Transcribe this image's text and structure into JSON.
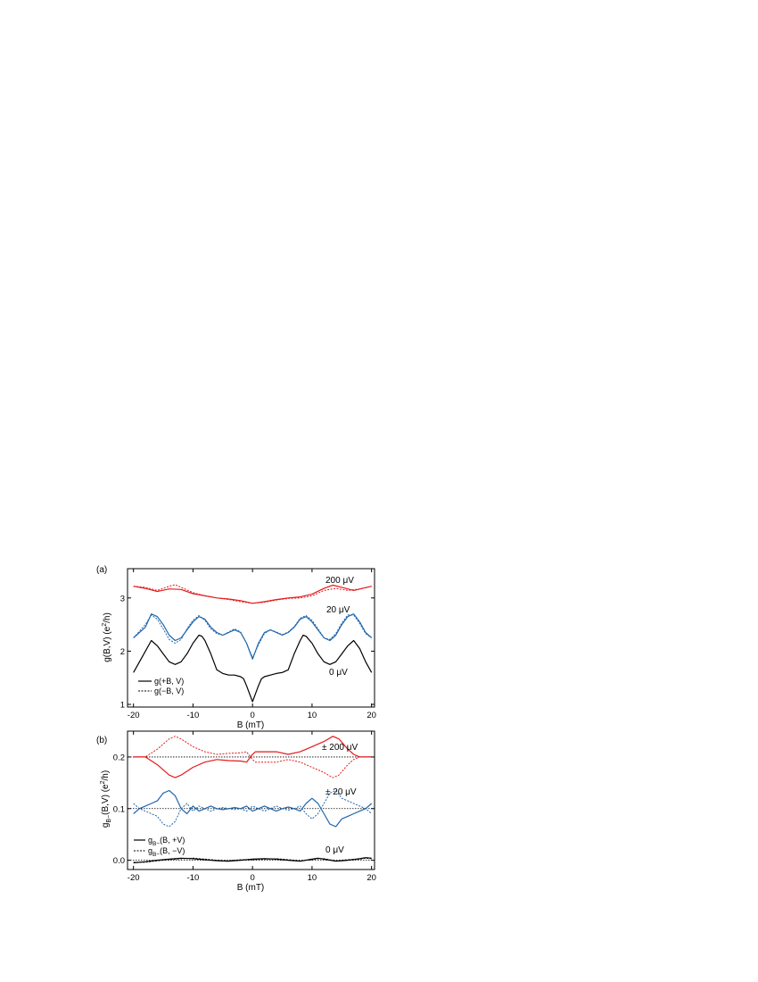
{
  "chart_data": [
    {
      "type": "line",
      "panel_label": "(a)",
      "xlabel": "B (mT)",
      "ylabel": "g(B,V)  (e",
      "ylabel_sup": "2",
      "ylabel_tail": "/h)",
      "xlim": [
        -21,
        20.5
      ],
      "ylim": [
        0.95,
        3.55
      ],
      "xticks": [
        -20,
        -10,
        0,
        10,
        20
      ],
      "xtick_labels": [
        "-20",
        "-10",
        "0",
        "10",
        "20"
      ],
      "yticks": [
        1,
        2,
        3
      ],
      "ytick_labels": [
        "1",
        "2",
        "3"
      ],
      "legend_position": "bottom-left",
      "legend": [
        {
          "label": "g(+B, V)",
          "style": "solid"
        },
        {
          "label": "g(−B, V)",
          "style": "dotted"
        }
      ],
      "annotations": [
        "200 μV",
        "20 μV",
        "0 μV"
      ],
      "series": [
        {
          "color": "#e41a1c",
          "style": "solid",
          "x": [
            -20,
            -18,
            -16,
            -14,
            -12,
            -10,
            -8,
            -6,
            -4,
            -2,
            0,
            2,
            4,
            6,
            8,
            10,
            12,
            13.5,
            15,
            17,
            20
          ],
          "y": [
            3.22,
            3.18,
            3.12,
            3.17,
            3.16,
            3.08,
            3.04,
            3.0,
            2.98,
            2.95,
            2.9,
            2.93,
            2.97,
            3.0,
            3.02,
            3.07,
            3.18,
            3.24,
            3.2,
            3.14,
            3.22
          ]
        },
        {
          "color": "#e41a1c",
          "style": "dotted",
          "x": [
            -20,
            -18,
            -16,
            -14,
            -13,
            -12,
            -10,
            -8,
            -6,
            -4,
            -2,
            0,
            2,
            4,
            6,
            8,
            10,
            12,
            14,
            16,
            18,
            20
          ],
          "y": [
            3.22,
            3.2,
            3.14,
            3.22,
            3.25,
            3.2,
            3.1,
            3.04,
            3.0,
            2.97,
            2.93,
            2.9,
            2.92,
            2.96,
            2.99,
            3.0,
            3.04,
            3.14,
            3.18,
            3.14,
            3.17,
            3.22
          ]
        },
        {
          "color": "#2166ac",
          "style": "solid",
          "x": [
            -20,
            -18,
            -17,
            -16,
            -15,
            -14,
            -13,
            -12,
            -11,
            -10,
            -9,
            -8,
            -7,
            -6,
            -5,
            -4,
            -3,
            -2,
            -1,
            0,
            1,
            2,
            3,
            4,
            5,
            6,
            7,
            8,
            9,
            10,
            11,
            12,
            13,
            14,
            15,
            16,
            17,
            18,
            19,
            20
          ],
          "y": [
            2.25,
            2.45,
            2.7,
            2.65,
            2.5,
            2.3,
            2.2,
            2.25,
            2.4,
            2.55,
            2.65,
            2.6,
            2.45,
            2.35,
            2.3,
            2.35,
            2.4,
            2.35,
            2.15,
            1.85,
            2.15,
            2.35,
            2.4,
            2.35,
            2.3,
            2.35,
            2.45,
            2.6,
            2.65,
            2.55,
            2.4,
            2.25,
            2.2,
            2.3,
            2.5,
            2.65,
            2.7,
            2.55,
            2.35,
            2.25
          ]
        },
        {
          "color": "#2166ac",
          "style": "dotted",
          "x": [
            -20,
            -18,
            -17,
            -16,
            -15,
            -14,
            -13,
            -12,
            -11,
            -10,
            -9,
            -8,
            -7,
            -6,
            -5,
            -4,
            -3,
            -2,
            -1,
            0,
            1,
            2,
            3,
            4,
            5,
            6,
            7,
            8,
            9,
            10,
            11,
            12,
            13,
            14,
            15,
            16,
            17,
            18,
            19,
            20
          ],
          "y": [
            2.25,
            2.5,
            2.68,
            2.6,
            2.42,
            2.22,
            2.15,
            2.22,
            2.42,
            2.58,
            2.67,
            2.58,
            2.42,
            2.33,
            2.3,
            2.36,
            2.42,
            2.36,
            2.15,
            1.88,
            2.12,
            2.33,
            2.4,
            2.36,
            2.31,
            2.36,
            2.46,
            2.62,
            2.67,
            2.58,
            2.42,
            2.25,
            2.22,
            2.33,
            2.53,
            2.68,
            2.68,
            2.52,
            2.33,
            2.25
          ]
        },
        {
          "color": "#000000",
          "style": "solid",
          "x": [
            -20,
            -18.5,
            -17,
            -16,
            -15,
            -14,
            -13,
            -12,
            -11,
            -10,
            -9,
            -8.5,
            -8,
            -7,
            -6,
            -5,
            -4,
            -3,
            -2,
            -1.5,
            -1,
            -0.5,
            0,
            0.5,
            1,
            1.5,
            2,
            3,
            4,
            5,
            6,
            7,
            8,
            8.5,
            9,
            10,
            11,
            12,
            13,
            14,
            15,
            16,
            17,
            18,
            19,
            20
          ],
          "y": [
            1.6,
            1.9,
            2.2,
            2.1,
            1.95,
            1.8,
            1.75,
            1.8,
            1.95,
            2.15,
            2.3,
            2.28,
            2.2,
            1.95,
            1.65,
            1.58,
            1.55,
            1.55,
            1.52,
            1.48,
            1.35,
            1.2,
            1.05,
            1.2,
            1.35,
            1.48,
            1.52,
            1.55,
            1.58,
            1.6,
            1.65,
            1.95,
            2.2,
            2.3,
            2.28,
            2.15,
            1.95,
            1.8,
            1.75,
            1.8,
            1.95,
            2.1,
            2.2,
            2.05,
            1.8,
            1.6
          ]
        }
      ]
    },
    {
      "type": "line",
      "panel_label": "(b)",
      "xlabel": "B (mT)",
      "ylabel": "g",
      "ylabel_sub": "B−",
      "ylabel_tail": "(B,V) (e",
      "ylabel_sup": "2",
      "ylabel_end": "/h)",
      "xlim": [
        -21,
        20.5
      ],
      "ylim": [
        -0.018,
        0.25
      ],
      "xticks": [
        -20,
        -10,
        0,
        10,
        20
      ],
      "xtick_labels": [
        "-20",
        "-10",
        "0",
        "10",
        "20"
      ],
      "yticks": [
        0.0,
        0.1,
        0.2
      ],
      "ytick_labels": [
        "0.0",
        "0.1",
        "0.2"
      ],
      "reference_lines": [
        0.0,
        0.1,
        0.2
      ],
      "legend_position": "bottom-left",
      "legend": [
        {
          "label_main": "g",
          "label_sub": "B−",
          "label_tail": "(B, +V)",
          "style": "solid"
        },
        {
          "label_main": "g",
          "label_sub": "B−",
          "label_tail": "(B, −V)",
          "style": "dotted"
        }
      ],
      "annotations": [
        "± 200 μV",
        "± 20 μV",
        "0 μV"
      ],
      "series": [
        {
          "color": "#e41a1c",
          "style": "solid",
          "x": [
            -20,
            -18,
            -16,
            -14,
            -13,
            -12,
            -10,
            -8,
            -6,
            -4,
            -2,
            -1,
            0,
            0.5,
            2,
            4,
            6,
            8,
            10,
            12,
            13.5,
            14.5,
            16,
            17,
            18,
            20
          ],
          "y": [
            0.2,
            0.2,
            0.185,
            0.165,
            0.16,
            0.165,
            0.18,
            0.19,
            0.195,
            0.193,
            0.192,
            0.19,
            0.205,
            0.21,
            0.21,
            0.21,
            0.205,
            0.21,
            0.22,
            0.23,
            0.24,
            0.235,
            0.215,
            0.205,
            0.2,
            0.2
          ]
        },
        {
          "color": "#e41a1c",
          "style": "dotted",
          "x": [
            -20,
            -18,
            -16,
            -14,
            -13,
            -12,
            -10,
            -8,
            -6,
            -4,
            -2,
            -1,
            0,
            0.5,
            2,
            4,
            6,
            8,
            10,
            12,
            13.5,
            14.5,
            16,
            17,
            18,
            20
          ],
          "y": [
            0.2,
            0.2,
            0.215,
            0.235,
            0.24,
            0.235,
            0.22,
            0.21,
            0.205,
            0.207,
            0.208,
            0.21,
            0.195,
            0.19,
            0.19,
            0.19,
            0.195,
            0.19,
            0.18,
            0.17,
            0.16,
            0.165,
            0.185,
            0.195,
            0.2,
            0.2
          ]
        },
        {
          "color": "#2166ac",
          "style": "solid",
          "x": [
            -20,
            -19,
            -18,
            -17,
            -16,
            -15,
            -14,
            -13,
            -12,
            -11,
            -10,
            -9,
            -8,
            -7,
            -6,
            -5,
            -4,
            -3,
            -2,
            -1,
            0,
            1,
            2,
            3,
            4,
            5,
            6,
            7,
            8,
            9,
            10,
            11,
            12,
            13,
            14,
            15,
            16,
            17,
            18,
            19,
            20
          ],
          "y": [
            0.09,
            0.1,
            0.105,
            0.11,
            0.115,
            0.13,
            0.135,
            0.125,
            0.1,
            0.09,
            0.105,
            0.095,
            0.1,
            0.105,
            0.1,
            0.098,
            0.1,
            0.102,
            0.1,
            0.105,
            0.095,
            0.1,
            0.105,
            0.1,
            0.095,
            0.1,
            0.103,
            0.1,
            0.095,
            0.11,
            0.12,
            0.11,
            0.09,
            0.07,
            0.065,
            0.08,
            0.085,
            0.09,
            0.095,
            0.1,
            0.11
          ]
        },
        {
          "color": "#2166ac",
          "style": "dotted",
          "x": [
            -20,
            -19,
            -18,
            -17,
            -16,
            -15,
            -14,
            -13,
            -12,
            -11,
            -10,
            -9,
            -8,
            -7,
            -6,
            -5,
            -4,
            -3,
            -2,
            -1,
            0,
            1,
            2,
            3,
            4,
            5,
            6,
            7,
            8,
            9,
            10,
            11,
            12,
            13,
            14,
            15,
            16,
            17,
            18,
            19,
            20
          ],
          "y": [
            0.11,
            0.1,
            0.095,
            0.09,
            0.085,
            0.07,
            0.065,
            0.075,
            0.1,
            0.11,
            0.095,
            0.105,
            0.1,
            0.095,
            0.1,
            0.102,
            0.1,
            0.098,
            0.1,
            0.095,
            0.105,
            0.1,
            0.095,
            0.1,
            0.105,
            0.1,
            0.097,
            0.1,
            0.105,
            0.09,
            0.08,
            0.09,
            0.11,
            0.13,
            0.135,
            0.12,
            0.115,
            0.11,
            0.105,
            0.1,
            0.09
          ]
        },
        {
          "color": "#000000",
          "style": "solid",
          "x": [
            -20,
            -18,
            -16,
            -14,
            -12,
            -10,
            -8,
            -6,
            -4,
            -2,
            0,
            2,
            4,
            6,
            8,
            10,
            11,
            12,
            14,
            16,
            18,
            19,
            20
          ],
          "y": [
            -0.005,
            -0.003,
            0.0,
            0.002,
            0.004,
            0.003,
            0.001,
            -0.001,
            -0.002,
            0.0,
            0.002,
            0.003,
            0.002,
            0.0,
            -0.002,
            0.002,
            0.004,
            0.002,
            -0.002,
            0.0,
            0.003,
            0.005,
            0.004
          ]
        },
        {
          "color": "#000000",
          "style": "dotted",
          "x": [
            -20,
            -18,
            -16,
            -14,
            -12,
            -10,
            -8,
            -6,
            -4,
            -2,
            0,
            2,
            4,
            6,
            8,
            10,
            11,
            12,
            14,
            16,
            18,
            19,
            20
          ],
          "y": [
            -0.004,
            -0.004,
            -0.001,
            0.001,
            0.003,
            0.004,
            0.002,
            0.0,
            -0.001,
            0.001,
            0.001,
            0.002,
            0.003,
            0.001,
            -0.001,
            0.001,
            0.003,
            0.003,
            -0.001,
            0.001,
            0.002,
            0.004,
            0.003
          ]
        }
      ]
    }
  ]
}
